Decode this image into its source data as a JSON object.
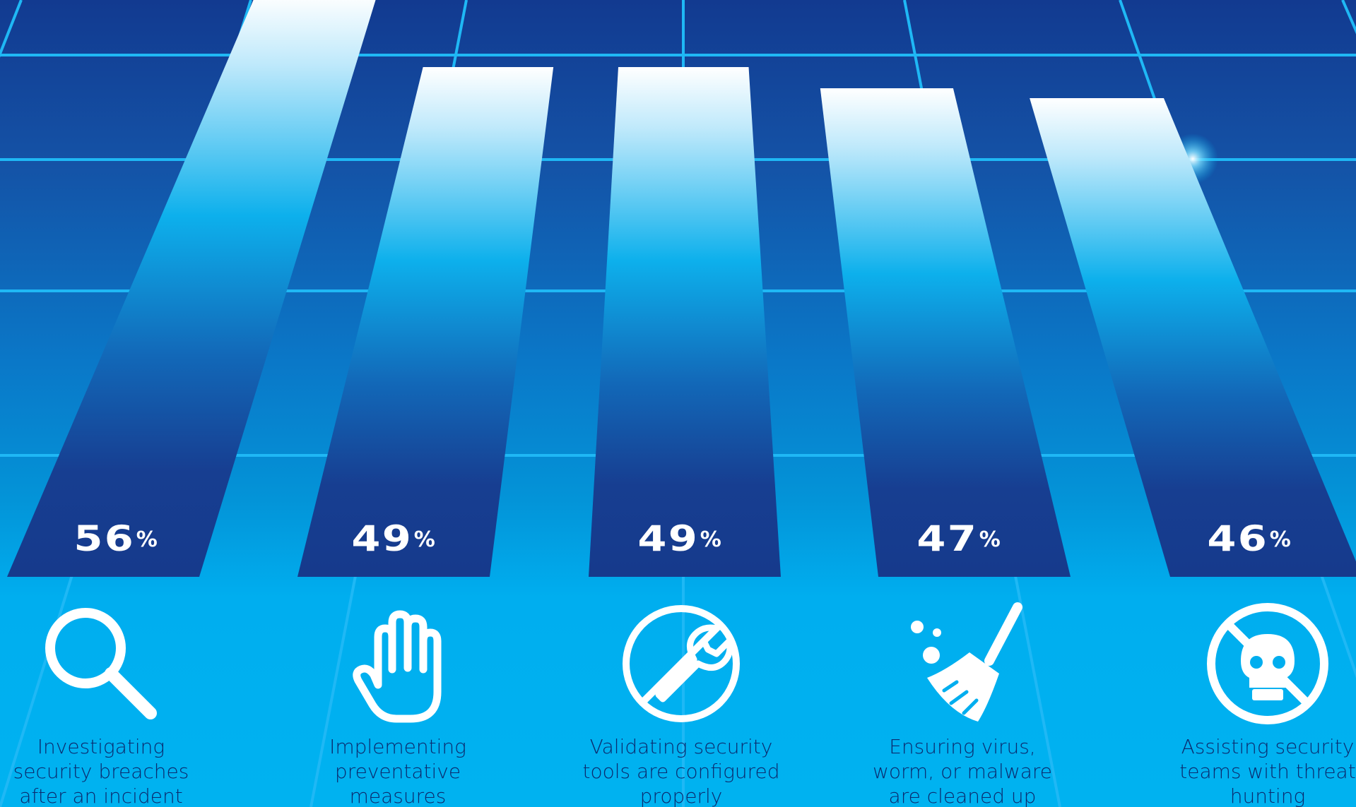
{
  "chart_data": {
    "type": "bar",
    "categories": [
      "Investigating\nsecurity breaches\nafter an incident",
      "Implementing\npreventative\nmeasures",
      "Validating security\ntools are configured\nproperly",
      "Ensuring virus,\nworm, or malware\nare cleaned up",
      "Assisting security\nteams with threat\nhunting"
    ],
    "values": [
      56,
      49,
      49,
      47,
      46
    ],
    "value_labels": [
      "56",
      "49",
      "49",
      "47",
      "46"
    ],
    "unit": "%",
    "grid": true,
    "title": "",
    "xlabel": "",
    "ylabel": ""
  },
  "icons": [
    "search-icon",
    "hand-stop-icon",
    "wrench-icon",
    "broom-icon",
    "no-skull-icon"
  ],
  "colors": {
    "background_top": "#123a90",
    "background_bottom": "#00b2f0",
    "grid_line": "#1fb8f5",
    "bar_top": "#ffffff",
    "bar_mid": "#0db0ec",
    "bar_bottom": "#153a8c",
    "label_text": "#0b2a6e",
    "value_text": "#ffffff"
  }
}
